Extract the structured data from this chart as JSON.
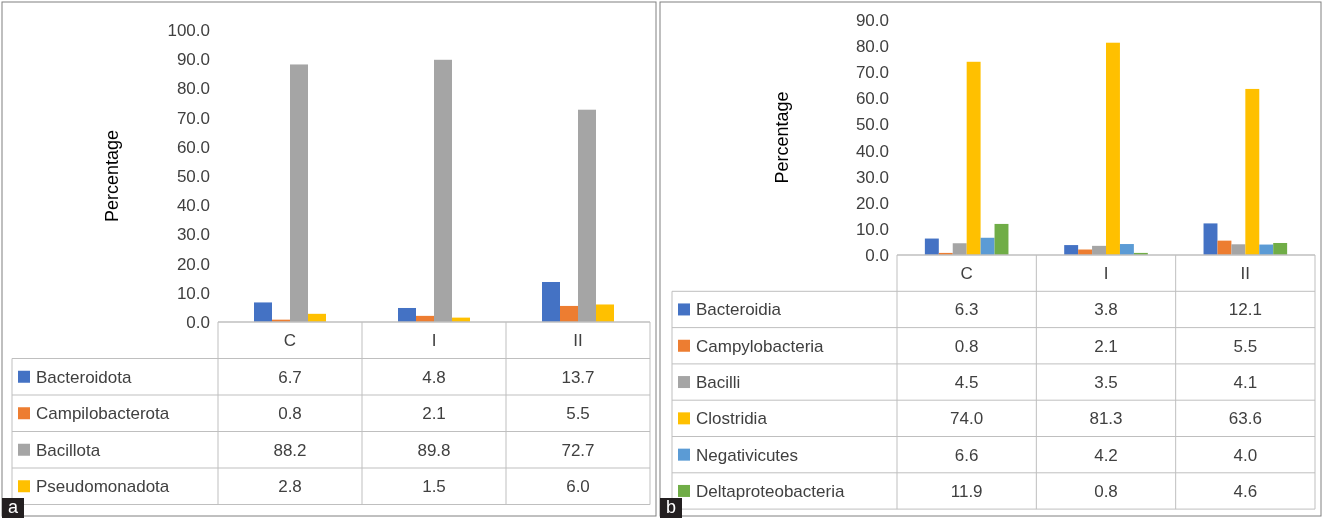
{
  "chart_data": [
    {
      "type": "bar",
      "ylabel": "Percentage",
      "categories": [
        "C",
        "I",
        "II"
      ],
      "legend": "bottom",
      "annotations": [
        "a"
      ],
      "ylim": [
        0,
        100
      ],
      "yticks": [
        {
          "value": 0,
          "label": "0.0"
        },
        {
          "value": 10,
          "label": "10.0"
        },
        {
          "value": 20,
          "label": "20.0"
        },
        {
          "value": 30,
          "label": "30.0"
        },
        {
          "value": 40,
          "label": "40.0"
        },
        {
          "value": 50,
          "label": "50.0"
        },
        {
          "value": 60,
          "label": "60.0"
        },
        {
          "value": 70,
          "label": "70.0"
        },
        {
          "value": 80,
          "label": "80.0"
        },
        {
          "value": 90,
          "label": "90.0"
        },
        {
          "value": 100,
          "label": "100.0"
        }
      ],
      "series": [
        {
          "name": "Bacteroidota",
          "color": "#4472c4",
          "values": [
            6.7,
            4.8,
            13.7
          ],
          "value_labels": [
            "6.7",
            "4.8",
            "13.7"
          ]
        },
        {
          "name": "Campilobacterota",
          "color": "#ed7d31",
          "values": [
            0.8,
            2.1,
            5.5
          ],
          "value_labels": [
            "0.8",
            "2.1",
            "5.5"
          ]
        },
        {
          "name": "Bacillota",
          "color": "#a5a5a5",
          "values": [
            88.2,
            89.8,
            72.7
          ],
          "value_labels": [
            "88.2",
            "89.8",
            "72.7"
          ]
        },
        {
          "name": "Pseudomonadota",
          "color": "#ffc000",
          "values": [
            2.8,
            1.5,
            6.0
          ],
          "value_labels": [
            "2.8",
            "1.5",
            "6.0"
          ]
        }
      ]
    },
    {
      "type": "bar",
      "ylabel": "Percentage",
      "categories": [
        "C",
        "I",
        "II"
      ],
      "legend": "bottom",
      "annotations": [
        "b"
      ],
      "ylim": [
        0,
        90
      ],
      "yticks": [
        {
          "value": 0,
          "label": "0.0"
        },
        {
          "value": 10,
          "label": "10.0"
        },
        {
          "value": 20,
          "label": "20.0"
        },
        {
          "value": 30,
          "label": "30.0"
        },
        {
          "value": 40,
          "label": "40.0"
        },
        {
          "value": 50,
          "label": "50.0"
        },
        {
          "value": 60,
          "label": "60.0"
        },
        {
          "value": 70,
          "label": "70.0"
        },
        {
          "value": 80,
          "label": "80.0"
        },
        {
          "value": 90,
          "label": "90.0"
        }
      ],
      "series": [
        {
          "name": "Bacteroidia",
          "color": "#4472c4",
          "values": [
            6.3,
            3.8,
            12.1
          ],
          "value_labels": [
            "6.3",
            "3.8",
            "12.1"
          ]
        },
        {
          "name": "Campylobacteria",
          "color": "#ed7d31",
          "values": [
            0.8,
            2.1,
            5.5
          ],
          "value_labels": [
            "0.8",
            "2.1",
            "5.5"
          ]
        },
        {
          "name": "Bacilli",
          "color": "#a5a5a5",
          "values": [
            4.5,
            3.5,
            4.1
          ],
          "value_labels": [
            "4.5",
            "3.5",
            "4.1"
          ]
        },
        {
          "name": "Clostridia",
          "color": "#ffc000",
          "values": [
            74.0,
            81.3,
            63.6
          ],
          "value_labels": [
            "74.0",
            "81.3",
            "63.6"
          ]
        },
        {
          "name": "Negativicutes",
          "color": "#5b9bd5",
          "values": [
            6.6,
            4.2,
            4.0
          ],
          "value_labels": [
            "6.6",
            "4.2",
            "4.0"
          ]
        },
        {
          "name": "Deltaproteobacteria",
          "color": "#70ad47",
          "values": [
            11.9,
            0.8,
            4.6
          ],
          "value_labels": [
            "11.9",
            "0.8",
            "4.6"
          ]
        }
      ]
    }
  ]
}
